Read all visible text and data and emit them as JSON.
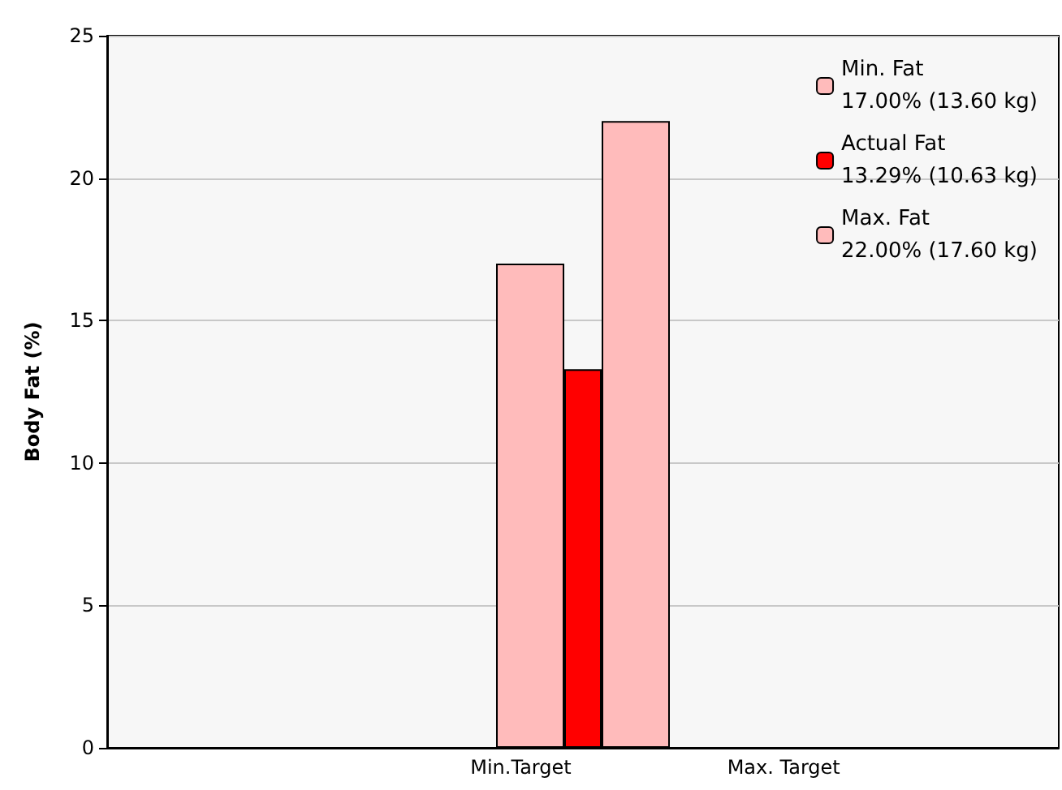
{
  "chart_data": {
    "type": "bar",
    "ylabel": "Body Fat (%)",
    "categories": [
      null
    ],
    "series": [
      {
        "name": "Min. Fat\n17.00% (13.60 kg)",
        "color": "#ffbbbb",
        "values": [
          17
        ]
      },
      {
        "name": "Actual Fat\n13.29% (10.63 kg)",
        "color": "#ff0000",
        "values": [
          13.29
        ]
      },
      {
        "name": "Max. Fat\n22.00% (17.60 kg)",
        "color": "#ffbbbb",
        "values": [
          22
        ]
      }
    ],
    "annotations": [
      "Min.Target",
      "Max. Target"
    ],
    "ylim": [
      0,
      25
    ],
    "yticks": [
      0,
      5,
      10,
      15,
      20,
      25
    ],
    "grid": "y",
    "legend": "top right"
  }
}
